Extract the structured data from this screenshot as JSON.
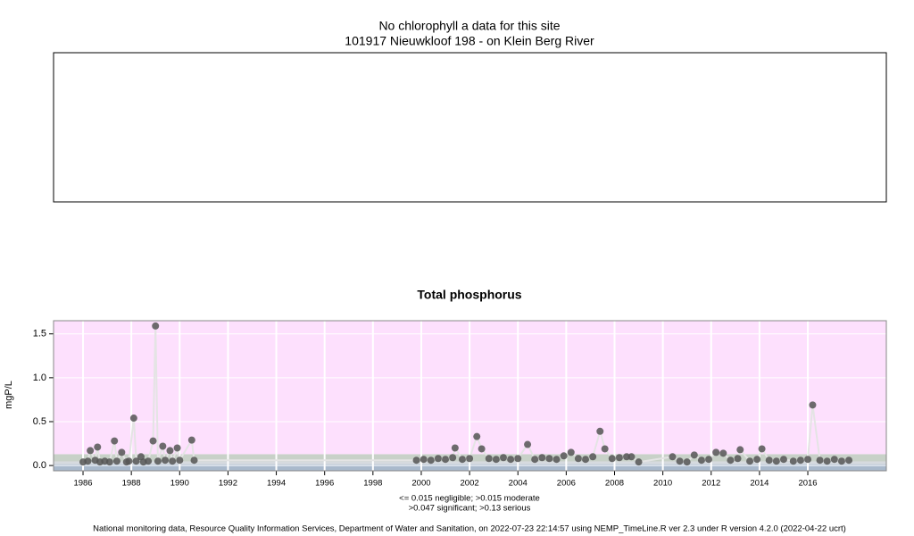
{
  "chart_data": [
    {
      "type": "empty",
      "title": "No chlorophyll a data for this site",
      "subtitle": "101917 Nieuwkloof 198 - on Klein Berg River"
    },
    {
      "type": "scatter",
      "title": "Total phosphorus",
      "ylabel": "mgP/L",
      "xlim": [
        1984.78,
        2019.25
      ],
      "ylim": [
        -0.06,
        1.65
      ],
      "xticks": [
        1986,
        1988,
        1990,
        1992,
        1994,
        1996,
        1998,
        2000,
        2002,
        2004,
        2006,
        2008,
        2010,
        2012,
        2014,
        2016
      ],
      "yticks": [
        {
          "value": 0,
          "label": "0.0"
        },
        0.5,
        {
          "value": 1,
          "label": "1.0"
        },
        1.5
      ],
      "grid": true,
      "thresholds": [
        0.015,
        0.047,
        0.13
      ],
      "band_colors": [
        "#a9b9cc",
        "#d6dadf",
        "#c8d1c8",
        "#fde0fd"
      ],
      "notes": [
        "<= 0.015 negligible; >0.015 moderate",
        ">0.047 significant; >0.13 serious"
      ],
      "series": [
        {
          "color": "#555555",
          "line_color": "#e4e4e4",
          "x": [
            1986.0,
            1986.2,
            1986.3,
            1986.5,
            1986.6,
            1986.7,
            1986.9,
            1987.1,
            1987.3,
            1987.4,
            1987.6,
            1987.8,
            1987.9,
            1988.1,
            1988.2,
            1988.4,
            1988.5,
            1988.7,
            1988.9,
            1989.0,
            1989.1,
            1989.3,
            1989.4,
            1989.6,
            1989.7,
            1989.9,
            1990.0,
            1990.5,
            1990.6,
            1999.8,
            2000.1,
            2000.4,
            2000.7,
            2001.0,
            2001.3,
            2001.4,
            2001.7,
            2002.0,
            2002.3,
            2002.5,
            2002.8,
            2003.1,
            2003.4,
            2003.7,
            2004.0,
            2004.4,
            2004.7,
            2005.0,
            2005.3,
            2005.6,
            2005.9,
            2006.2,
            2006.5,
            2006.8,
            2007.1,
            2007.4,
            2007.6,
            2007.9,
            2008.2,
            2008.5,
            2008.7,
            2009.0,
            2010.4,
            2010.7,
            2011.0,
            2011.3,
            2011.6,
            2011.9,
            2012.2,
            2012.5,
            2012.8,
            2013.1,
            2013.2,
            2013.6,
            2013.9,
            2014.1,
            2014.4,
            2014.7,
            2015.0,
            2015.4,
            2015.7,
            2016.0,
            2016.2,
            2016.5,
            2016.8,
            2017.1,
            2017.4,
            2017.7
          ],
          "values": [
            0.04,
            0.05,
            0.17,
            0.06,
            0.21,
            0.04,
            0.05,
            0.04,
            0.28,
            0.05,
            0.15,
            0.04,
            0.05,
            0.54,
            0.05,
            0.1,
            0.04,
            0.05,
            0.28,
            1.59,
            0.05,
            0.22,
            0.06,
            0.17,
            0.05,
            0.2,
            0.06,
            0.29,
            0.06,
            0.06,
            0.07,
            0.06,
            0.08,
            0.07,
            0.09,
            0.2,
            0.07,
            0.08,
            0.33,
            0.19,
            0.08,
            0.07,
            0.09,
            0.07,
            0.08,
            0.24,
            0.07,
            0.09,
            0.08,
            0.07,
            0.11,
            0.15,
            0.08,
            0.07,
            0.1,
            0.39,
            0.19,
            0.08,
            0.09,
            0.1,
            0.1,
            0.04,
            0.1,
            0.05,
            0.04,
            0.12,
            0.06,
            0.07,
            0.15,
            0.14,
            0.06,
            0.08,
            0.18,
            0.05,
            0.07,
            0.19,
            0.06,
            0.05,
            0.07,
            0.05,
            0.06,
            0.07,
            0.69,
            0.06,
            0.05,
            0.07,
            0.05,
            0.06
          ]
        }
      ]
    }
  ],
  "footer": "National monitoring data, Resource Quality Information Services, Department of Water and Sanitation, on 2022-07-23 22:14:57 using NEMP_TimeLine.R ver 2.3 under R version 4.2.0 (2022-04-22 ucrt)"
}
